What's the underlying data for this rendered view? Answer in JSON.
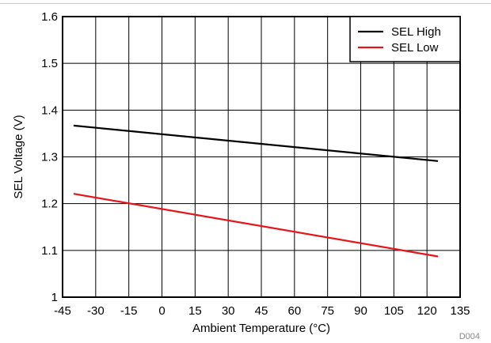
{
  "figure_id": "D004",
  "chart_data": {
    "type": "line",
    "title": "",
    "xlabel": "Ambient Temperature (°C)",
    "ylabel": "SEL Voltage (V)",
    "xlim": [
      -45,
      135
    ],
    "ylim": [
      1.0,
      1.6
    ],
    "x_ticks": [
      "-45",
      "-30",
      "-15",
      "0",
      "15",
      "30",
      "45",
      "60",
      "75",
      "90",
      "105",
      "120",
      "135"
    ],
    "y_ticks": [
      "1",
      "1.1",
      "1.2",
      "1.3",
      "1.4",
      "1.5",
      "1.6"
    ],
    "grid": true,
    "legend_position": "top-right",
    "series": [
      {
        "name": "SEL High",
        "color": "#000000",
        "x": [
          -40,
          125
        ],
        "y": [
          1.367,
          1.291
        ]
      },
      {
        "name": "SEL Low",
        "color": "#e8141b",
        "x": [
          -40,
          125
        ],
        "y": [
          1.221,
          1.087
        ]
      }
    ]
  }
}
